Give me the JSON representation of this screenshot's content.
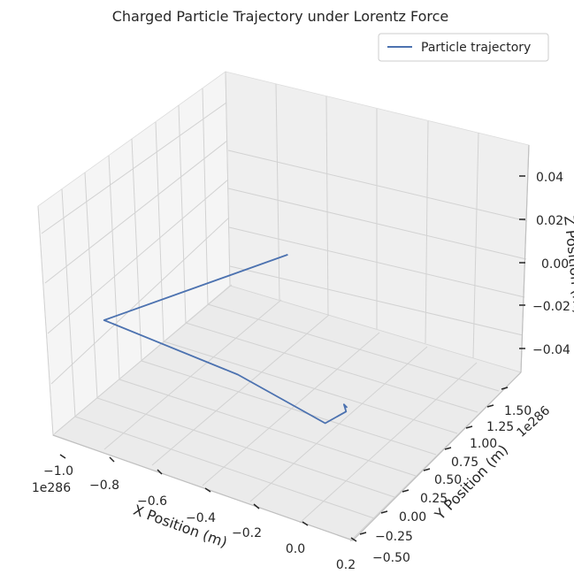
{
  "chart_data": {
    "type": "line",
    "projection": "3d",
    "title": "Charged Particle Trajectory under Lorentz Force",
    "xlabel": "X Position (m)",
    "ylabel": "Y Position (m)",
    "zlabel": "Z Position (m)",
    "x_offset_text": "1e286",
    "y_offset_text": "1e286",
    "x_ticks": [
      "−1.0",
      "−0.8",
      "−0.6",
      "−0.4",
      "−0.2",
      "0.0",
      "0.2"
    ],
    "y_ticks": [
      "−0.50",
      "−0.25",
      "0.00",
      "0.25",
      "0.50",
      "0.75",
      "1.00",
      "1.25",
      "1.50"
    ],
    "z_ticks": [
      "−0.04",
      "−0.02",
      "0.00",
      "0.02",
      "0.04"
    ],
    "xlim": [
      -1.0,
      0.2
    ],
    "ylim": [
      -0.5,
      1.5
    ],
    "zlim": [
      -0.05,
      0.05
    ],
    "grid": true,
    "legend_position": "top-right",
    "series": [
      {
        "name": "Particle trajectory",
        "color": "#4c72b0",
        "x": [
          0.0,
          -0.02,
          0.01,
          -0.01,
          -0.42,
          -0.98,
          -0.68
        ],
        "y": [
          0.0,
          0.02,
          -0.04,
          -0.22,
          -0.05,
          0.02,
          1.25
        ],
        "z": [
          0,
          0,
          0,
          0,
          0,
          0,
          0
        ]
      }
    ]
  }
}
